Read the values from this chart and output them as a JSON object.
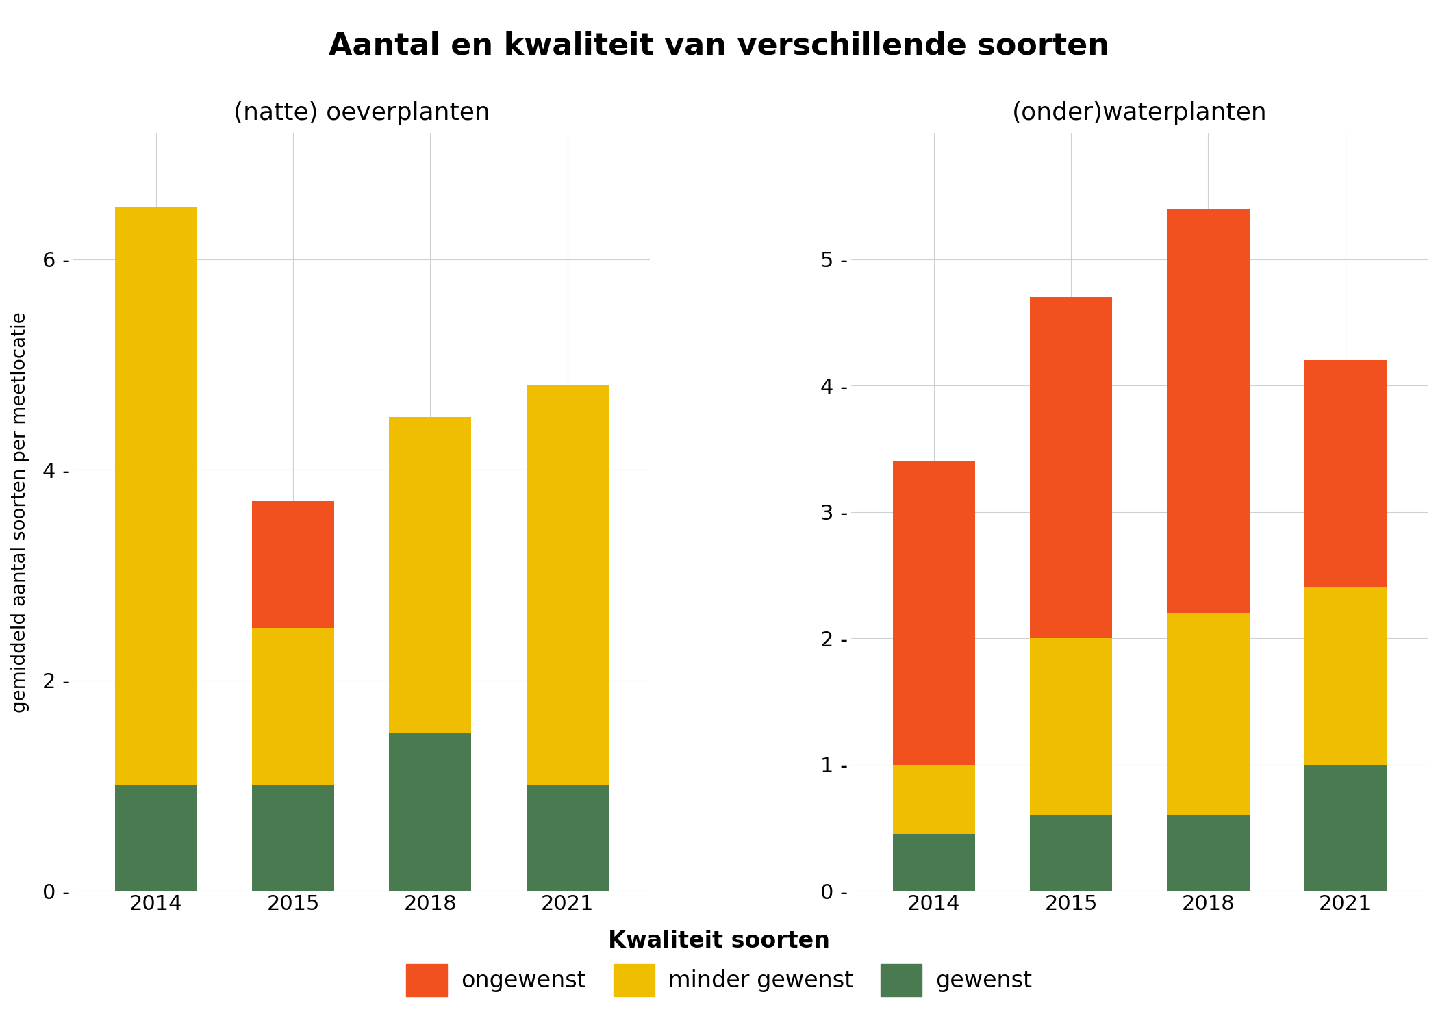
{
  "title": "Aantal en kwaliteit van verschillende soorten",
  "left_subtitle": "(natte) oeverplanten",
  "right_subtitle": "(onder)waterplanten",
  "ylabel": "gemiddeld aantal soorten per meetlocatie",
  "years": [
    "2014",
    "2015",
    "2018",
    "2021"
  ],
  "left": {
    "gewenst": [
      1.0,
      1.0,
      1.5,
      1.0
    ],
    "minder_gewenst": [
      5.5,
      1.5,
      3.0,
      3.8
    ],
    "ongewenst": [
      0.0,
      1.2,
      0.0,
      0.0
    ]
  },
  "right": {
    "gewenst": [
      0.45,
      0.6,
      0.6,
      1.0
    ],
    "minder_gewenst": [
      0.55,
      1.4,
      1.6,
      1.4
    ],
    "ongewenst": [
      2.4,
      2.7,
      3.2,
      1.8
    ]
  },
  "colors": {
    "ongewenst": "#F0511E",
    "minder_gewenst": "#F0BE00",
    "gewenst": "#4A7A50"
  },
  "legend_title": "Kwaliteit soorten",
  "legend_labels": [
    "ongewenst",
    "minder gewenst",
    "gewenst"
  ],
  "left_ylim": [
    0,
    7.2
  ],
  "right_ylim": [
    0,
    6.0
  ],
  "left_yticks": [
    0,
    2,
    4,
    6
  ],
  "right_yticks": [
    0,
    1,
    2,
    3,
    4,
    5
  ],
  "background_color": "#FFFFFF",
  "grid_color": "#D0D0D0"
}
